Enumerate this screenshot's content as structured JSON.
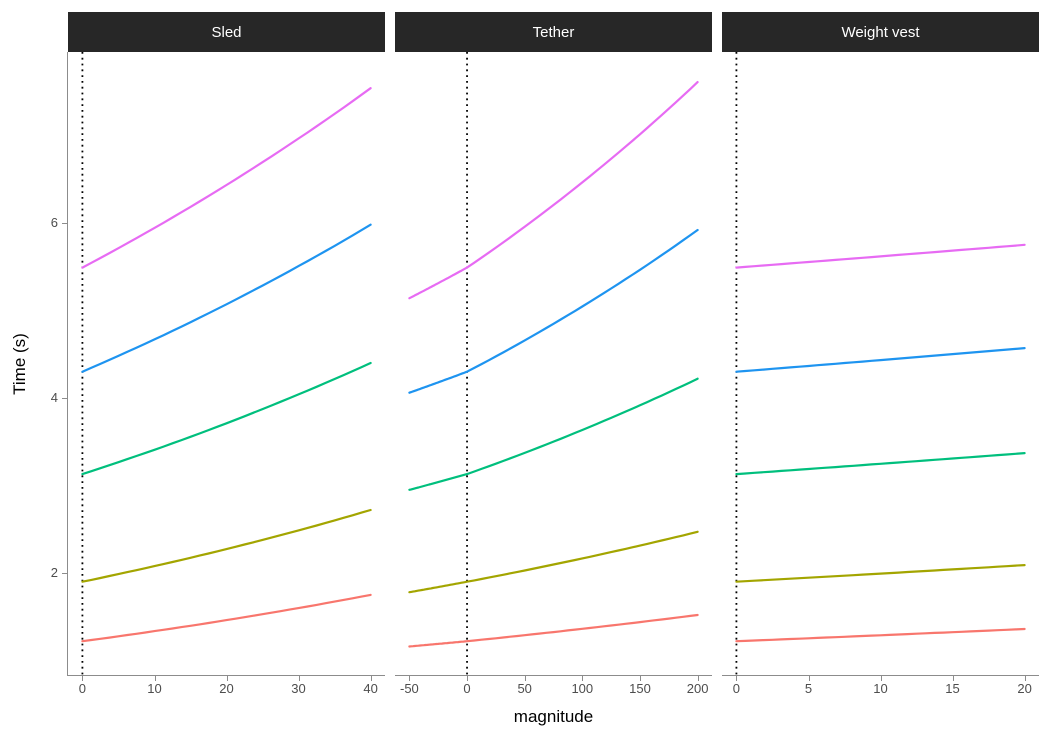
{
  "chart_data": {
    "type": "line",
    "title": "",
    "xlabel": "magnitude",
    "ylabel": "Time (s)",
    "legend": "none",
    "grid": "off",
    "y_ticks": [
      2,
      4,
      6
    ],
    "y_domain": [
      0.834,
      7.954
    ],
    "strip": {
      "background": "#272727",
      "text_color": "#ffffff"
    },
    "axis": {
      "line_color": "#8c8c8c",
      "tick_color": "#8c8c8c",
      "tick_label_color": "#4d4d4d"
    },
    "reference_line": {
      "x": 0,
      "style": "dotted",
      "color": "#000000"
    },
    "series_colors": [
      "#F8766D",
      "#A3A500",
      "#00BF7D",
      "#1E94F0",
      "#E76BF3"
    ],
    "facets": [
      {
        "label": "Sled",
        "x_ticks": [
          0,
          10,
          20,
          30,
          40
        ],
        "x_domain": [
          -2,
          42
        ],
        "series": [
          {
            "color": "#F8766D",
            "points": [
              [
                0,
                1.22
              ],
              [
                40,
                1.75
              ]
            ]
          },
          {
            "color": "#A3A500",
            "points": [
              [
                0,
                1.9
              ],
              [
                40,
                2.72
              ]
            ]
          },
          {
            "color": "#00BF7D",
            "points": [
              [
                0,
                3.13
              ],
              [
                40,
                4.4
              ]
            ]
          },
          {
            "color": "#1E94F0",
            "points": [
              [
                0,
                4.3
              ],
              [
                40,
                5.98
              ]
            ]
          },
          {
            "color": "#E76BF3",
            "points": [
              [
                0,
                5.49
              ],
              [
                40,
                7.54
              ]
            ]
          }
        ]
      },
      {
        "label": "Tether",
        "x_ticks": [
          -50,
          0,
          50,
          100,
          150,
          200
        ],
        "x_domain": [
          -62.5,
          212.5
        ],
        "series": [
          {
            "color": "#F8766D",
            "points": [
              [
                -50,
                1.16
              ],
              [
                0,
                1.22
              ],
              [
                200,
                1.52
              ]
            ]
          },
          {
            "color": "#A3A500",
            "points": [
              [
                -50,
                1.78
              ],
              [
                0,
                1.9
              ],
              [
                200,
                2.47
              ]
            ]
          },
          {
            "color": "#00BF7D",
            "points": [
              [
                -50,
                2.95
              ],
              [
                0,
                3.13
              ],
              [
                200,
                4.22
              ]
            ]
          },
          {
            "color": "#1E94F0",
            "points": [
              [
                -50,
                4.06
              ],
              [
                0,
                4.3
              ],
              [
                200,
                5.92
              ]
            ]
          },
          {
            "color": "#E76BF3",
            "points": [
              [
                -50,
                5.14
              ],
              [
                0,
                5.49
              ],
              [
                200,
                7.61
              ]
            ]
          }
        ]
      },
      {
        "label": "Weight vest",
        "x_ticks": [
          0,
          5,
          10,
          15,
          20
        ],
        "x_domain": [
          -1,
          21
        ],
        "series": [
          {
            "color": "#F8766D",
            "points": [
              [
                0,
                1.22
              ],
              [
                20,
                1.36
              ]
            ]
          },
          {
            "color": "#A3A500",
            "points": [
              [
                0,
                1.9
              ],
              [
                20,
                2.09
              ]
            ]
          },
          {
            "color": "#00BF7D",
            "points": [
              [
                0,
                3.13
              ],
              [
                20,
                3.37
              ]
            ]
          },
          {
            "color": "#1E94F0",
            "points": [
              [
                0,
                4.3
              ],
              [
                20,
                4.57
              ]
            ]
          },
          {
            "color": "#E76BF3",
            "points": [
              [
                0,
                5.49
              ],
              [
                20,
                5.75
              ]
            ]
          }
        ]
      }
    ]
  }
}
